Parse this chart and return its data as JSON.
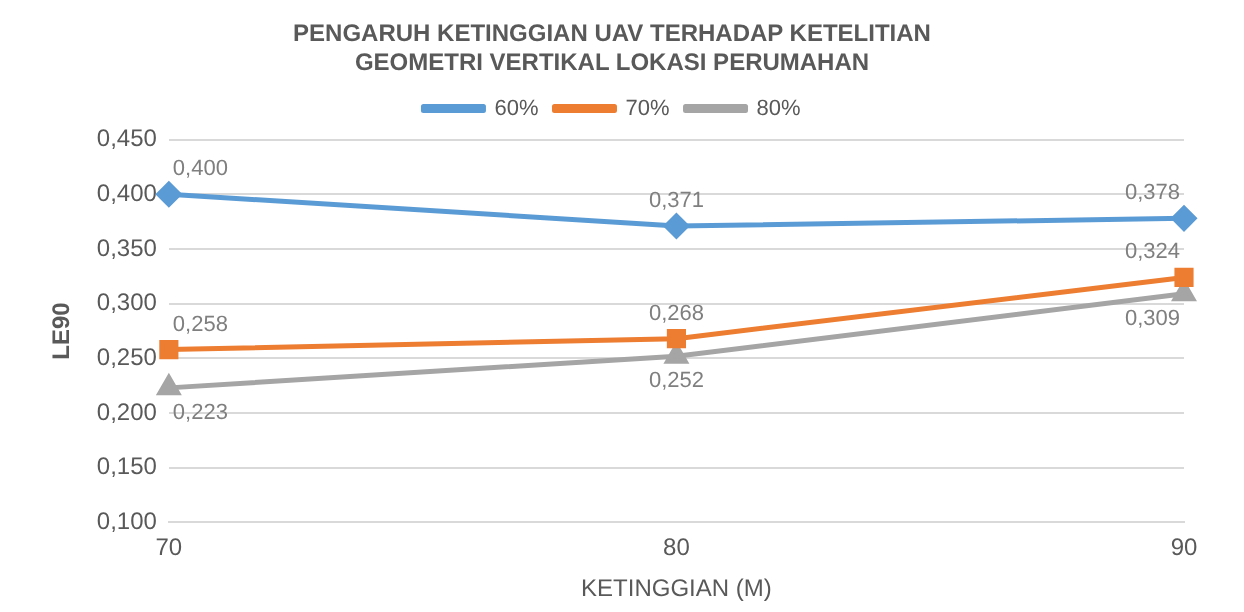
{
  "chart_data": {
    "type": "line",
    "title": [
      "PENGARUH KETINGGIAN UAV TERHADAP KETELITIAN",
      "GEOMETRI VERTIKAL LOKASI PERUMAHAN"
    ],
    "xlabel": "KETINGGIAN (M)",
    "ylabel": "LE90",
    "categories": [
      "70",
      "80",
      "90"
    ],
    "series": [
      {
        "name": "60%",
        "color": "#5b9bd5",
        "marker": "diamond",
        "values": [
          0.4,
          0.371,
          0.378
        ],
        "value_labels": [
          "0,400",
          "0,371",
          "0,378"
        ]
      },
      {
        "name": "70%",
        "color": "#ed7d31",
        "marker": "square",
        "values": [
          0.258,
          0.268,
          0.324
        ],
        "value_labels": [
          "0,258",
          "0,268",
          "0,324"
        ]
      },
      {
        "name": "80%",
        "color": "#a5a5a5",
        "marker": "triangle",
        "values": [
          0.223,
          0.252,
          0.309
        ],
        "value_labels": [
          "0,223",
          "0,252",
          "0,309"
        ]
      }
    ],
    "ylim": [
      0.1,
      0.45
    ],
    "yticks": [
      {
        "value": 0.1,
        "label": "0,100"
      },
      {
        "value": 0.15,
        "label": "0,150"
      },
      {
        "value": 0.2,
        "label": "0,200"
      },
      {
        "value": 0.25,
        "label": "0,250"
      },
      {
        "value": 0.3,
        "label": "0,300"
      },
      {
        "value": 0.35,
        "label": "0,350"
      },
      {
        "value": 0.4,
        "label": "0,400"
      },
      {
        "value": 0.45,
        "label": "0,450"
      }
    ],
    "grid": "y",
    "legend": "top",
    "line_style": "solid"
  }
}
